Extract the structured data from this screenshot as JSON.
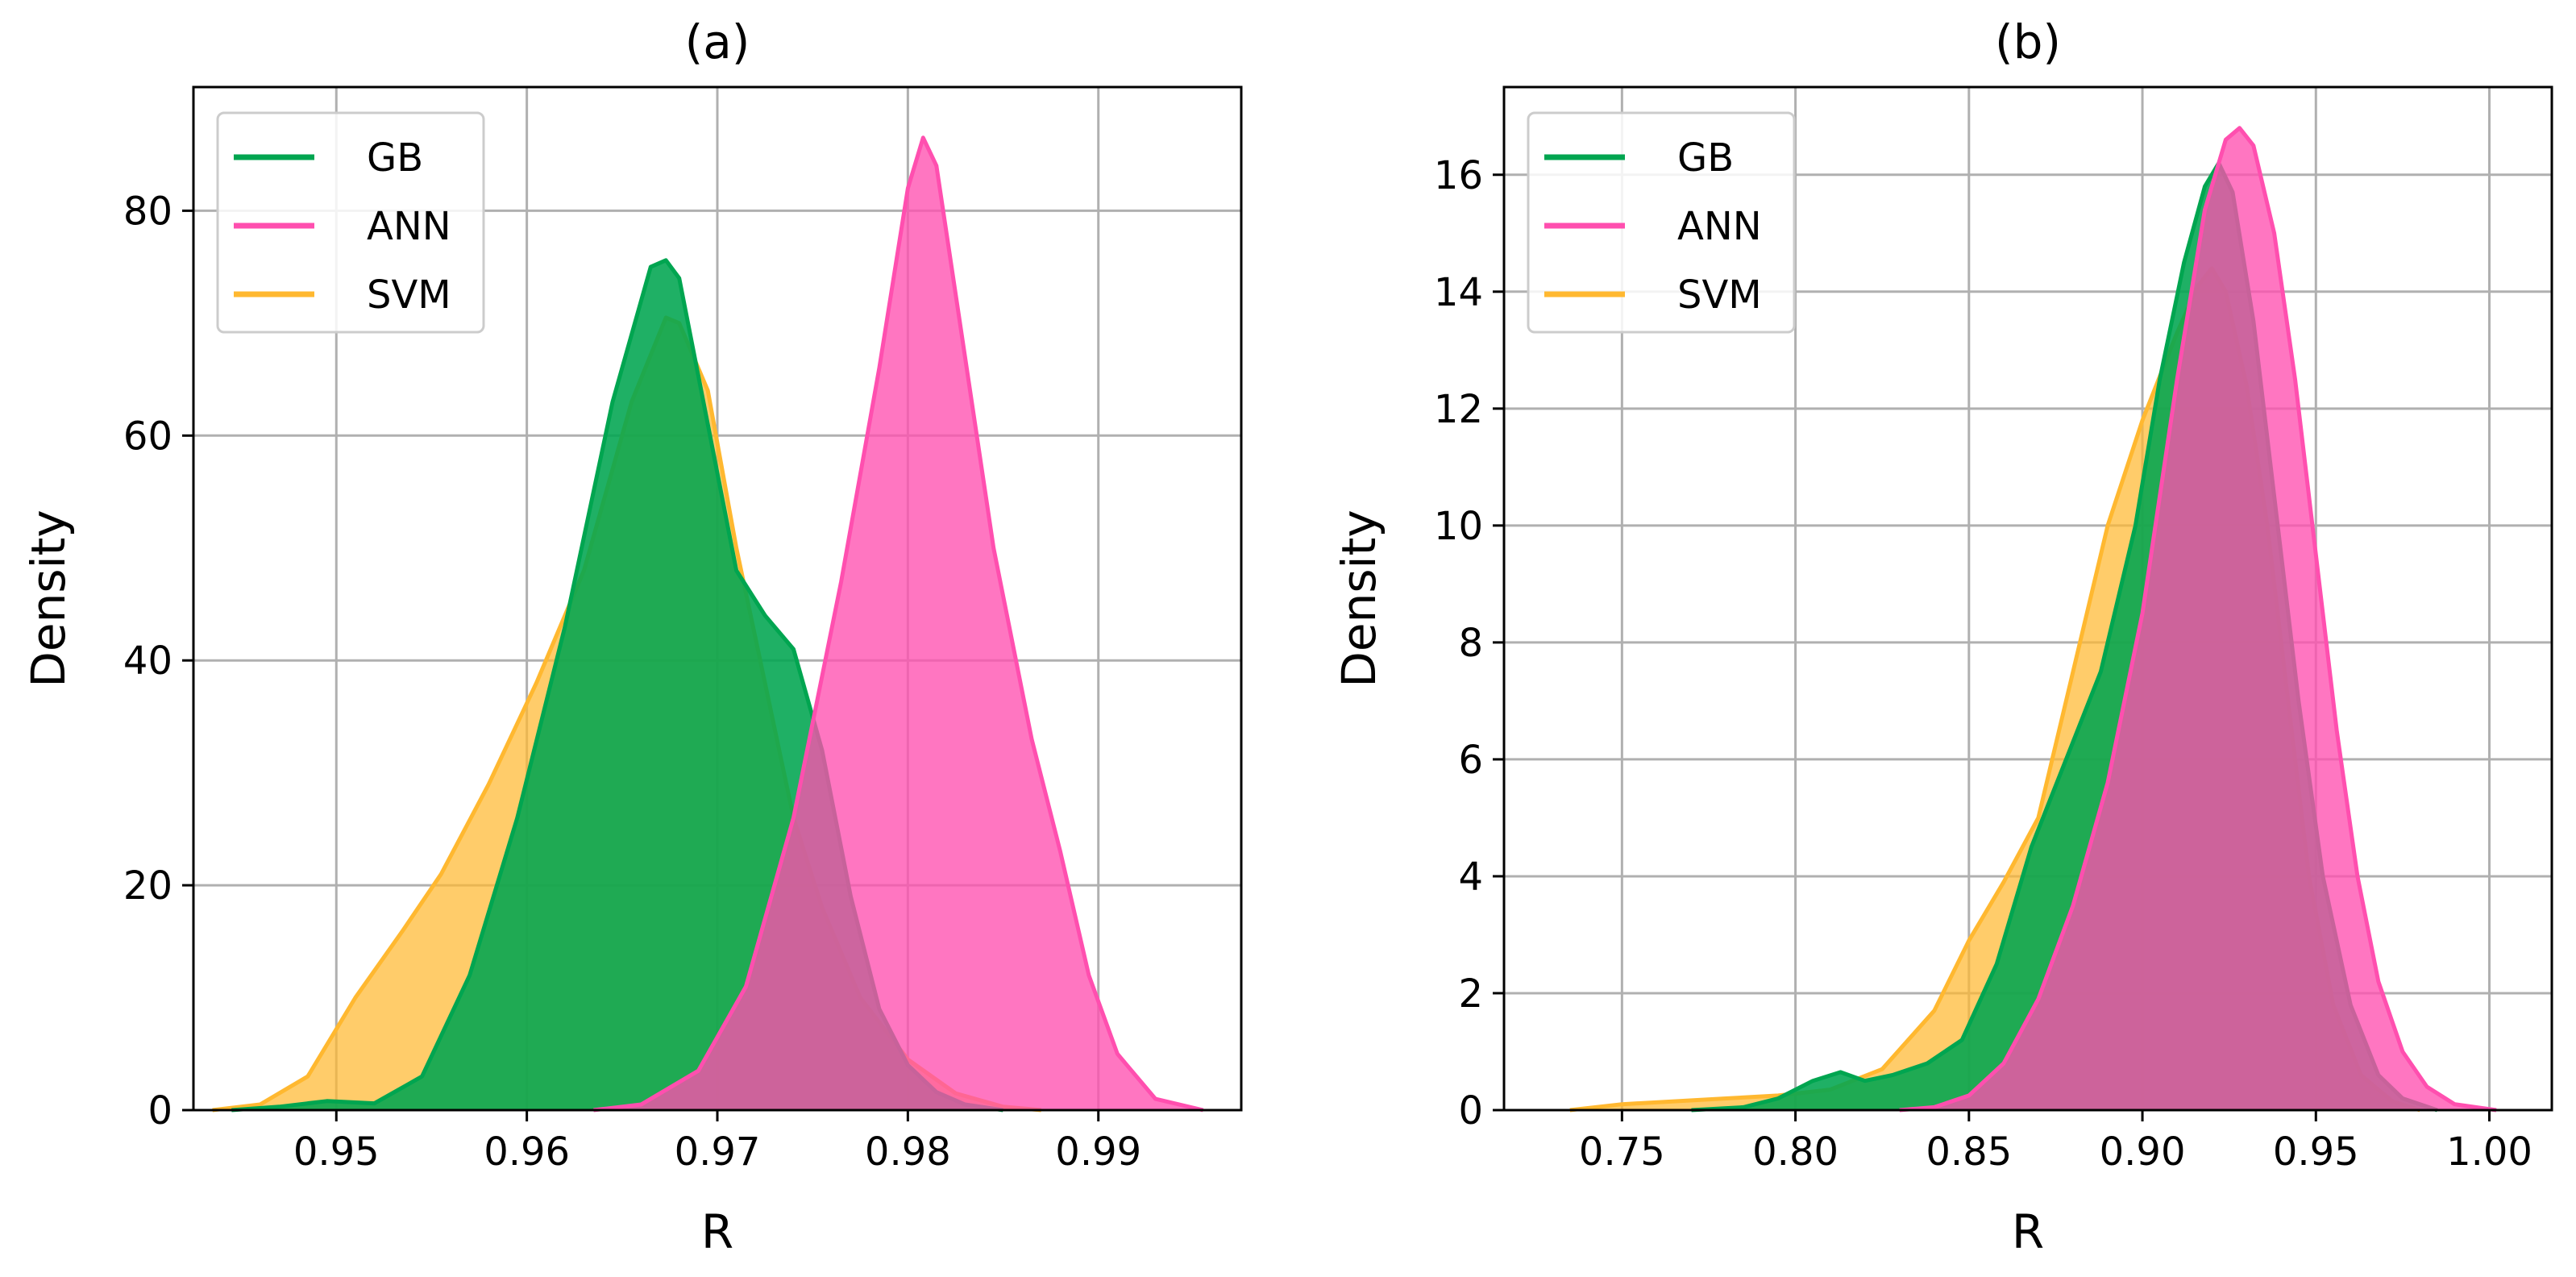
{
  "colors": {
    "GB": "#00A550",
    "ANN": "#FF4FAF",
    "SVM": "#FFB830"
  },
  "chart_data": [
    {
      "type": "area",
      "kind": "kde-density",
      "title": "(a)",
      "xlabel": "R",
      "ylabel": "Density",
      "xlim": [
        0.9425,
        0.9975
      ],
      "ylim": [
        0,
        91
      ],
      "xticks": [
        0.95,
        0.96,
        0.97,
        0.98,
        0.99
      ],
      "xtick_labels": [
        "0.95",
        "0.96",
        "0.97",
        "0.98",
        "0.99"
      ],
      "yticks": [
        0,
        20,
        40,
        60,
        80
      ],
      "ytick_labels": [
        "0",
        "20",
        "40",
        "60",
        "80"
      ],
      "grid": true,
      "legend": "top-left",
      "series": [
        {
          "name": "GB",
          "x": [
            0.9445,
            0.947,
            0.9495,
            0.952,
            0.9545,
            0.957,
            0.9595,
            0.962,
            0.9645,
            0.9665,
            0.9673,
            0.968,
            0.9695,
            0.971,
            0.9725,
            0.974,
            0.9755,
            0.977,
            0.9785,
            0.98,
            0.9815,
            0.983,
            0.985
          ],
          "y": [
            0.0,
            0.3,
            0.8,
            0.6,
            3.0,
            12.0,
            26.0,
            43.0,
            63.0,
            75.0,
            75.6,
            74.0,
            61.0,
            48.0,
            44.0,
            41.0,
            32.0,
            19.0,
            9.0,
            4.0,
            1.6,
            0.5,
            0.0
          ]
        },
        {
          "name": "ANN",
          "x": [
            0.9635,
            0.966,
            0.969,
            0.9715,
            0.974,
            0.9765,
            0.9785,
            0.98,
            0.9808,
            0.9815,
            0.983,
            0.9845,
            0.9865,
            0.988,
            0.9895,
            0.991,
            0.993,
            0.9955
          ],
          "y": [
            0.0,
            0.5,
            3.5,
            11.0,
            26.0,
            47.0,
            66.0,
            82.0,
            86.5,
            84.0,
            67.0,
            50.0,
            33.0,
            23.0,
            12.0,
            5.0,
            1.0,
            0.0
          ]
        },
        {
          "name": "SVM",
          "x": [
            0.9435,
            0.946,
            0.9485,
            0.951,
            0.9535,
            0.9555,
            0.958,
            0.9605,
            0.963,
            0.9655,
            0.9673,
            0.968,
            0.9695,
            0.971,
            0.9725,
            0.974,
            0.9755,
            0.9775,
            0.98,
            0.9825,
            0.985,
            0.987
          ],
          "y": [
            0.0,
            0.5,
            3.0,
            10.0,
            16.0,
            21.0,
            29.0,
            38.0,
            48.0,
            63.0,
            70.5,
            70.0,
            64.0,
            50.0,
            38.0,
            26.0,
            18.0,
            10.0,
            4.5,
            1.5,
            0.3,
            0.0
          ]
        }
      ]
    },
    {
      "type": "area",
      "kind": "kde-density",
      "title": "(b)",
      "xlabel": "R",
      "ylabel": "Density",
      "xlim": [
        0.716,
        1.018
      ],
      "ylim": [
        0,
        17.5
      ],
      "xticks": [
        0.75,
        0.8,
        0.85,
        0.9,
        0.95,
        1.0
      ],
      "xtick_labels": [
        "0.75",
        "0.80",
        "0.85",
        "0.90",
        "0.95",
        "1.00"
      ],
      "yticks": [
        0,
        2,
        4,
        6,
        8,
        10,
        12,
        14,
        16
      ],
      "ytick_labels": [
        "0",
        "2",
        "4",
        "6",
        "8",
        "10",
        "12",
        "14",
        "16"
      ],
      "grid": true,
      "legend": "top-left",
      "series": [
        {
          "name": "GB",
          "x": [
            0.77,
            0.785,
            0.795,
            0.805,
            0.813,
            0.82,
            0.828,
            0.838,
            0.848,
            0.858,
            0.868,
            0.878,
            0.888,
            0.898,
            0.905,
            0.912,
            0.918,
            0.922,
            0.926,
            0.932,
            0.938,
            0.945,
            0.952,
            0.96,
            0.968,
            0.975,
            0.985
          ],
          "y": [
            0.0,
            0.05,
            0.2,
            0.5,
            0.65,
            0.5,
            0.6,
            0.8,
            1.2,
            2.5,
            4.5,
            6.0,
            7.5,
            10.0,
            12.5,
            14.5,
            15.8,
            16.2,
            15.7,
            13.5,
            10.5,
            7.0,
            4.0,
            1.8,
            0.6,
            0.2,
            0.0
          ]
        },
        {
          "name": "ANN",
          "x": [
            0.83,
            0.84,
            0.85,
            0.86,
            0.87,
            0.88,
            0.89,
            0.9,
            0.91,
            0.918,
            0.924,
            0.928,
            0.932,
            0.938,
            0.944,
            0.95,
            0.956,
            0.962,
            0.968,
            0.975,
            0.982,
            0.99,
            1.002
          ],
          "y": [
            0.0,
            0.05,
            0.25,
            0.8,
            1.9,
            3.5,
            5.6,
            8.5,
            12.5,
            15.4,
            16.6,
            16.8,
            16.5,
            15.0,
            12.5,
            9.5,
            6.5,
            4.0,
            2.2,
            1.0,
            0.4,
            0.1,
            0.0
          ]
        },
        {
          "name": "SVM",
          "x": [
            0.735,
            0.75,
            0.765,
            0.78,
            0.795,
            0.81,
            0.825,
            0.84,
            0.85,
            0.86,
            0.87,
            0.88,
            0.89,
            0.9,
            0.91,
            0.916,
            0.92,
            0.924,
            0.93,
            0.936,
            0.942,
            0.948,
            0.955,
            0.963,
            0.972,
            0.98
          ],
          "y": [
            0.0,
            0.1,
            0.15,
            0.2,
            0.25,
            0.35,
            0.7,
            1.7,
            2.9,
            3.9,
            5.0,
            7.5,
            10.0,
            11.8,
            13.3,
            14.1,
            14.4,
            14.0,
            12.4,
            10.0,
            7.0,
            4.0,
            1.8,
            0.6,
            0.15,
            0.0
          ]
        }
      ]
    }
  ]
}
